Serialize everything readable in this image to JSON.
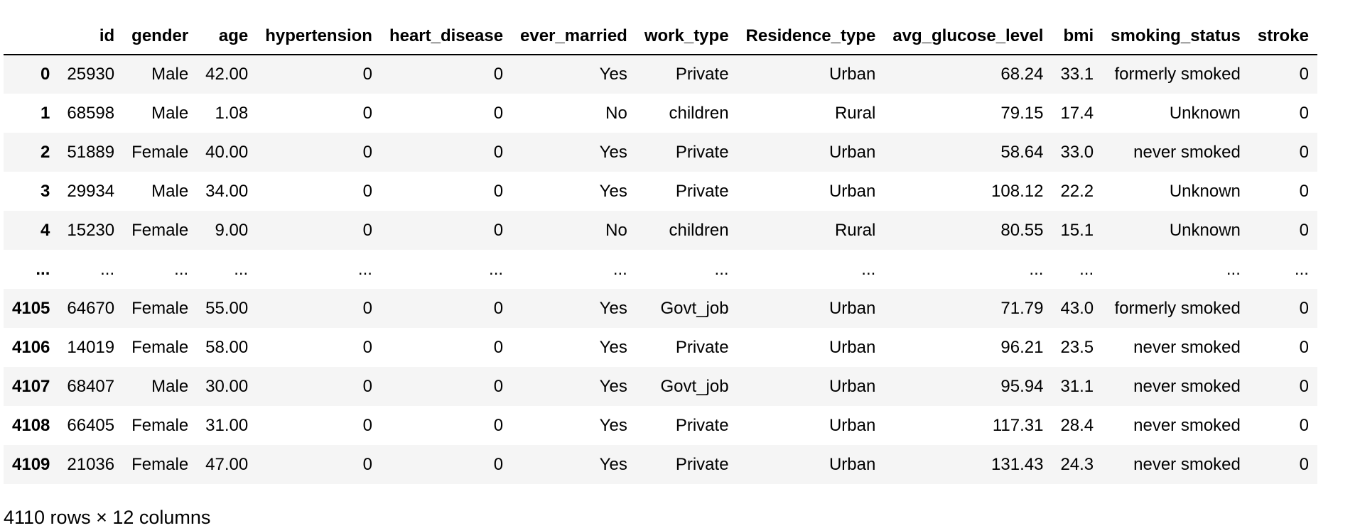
{
  "table": {
    "columns": [
      "",
      "id",
      "gender",
      "age",
      "hypertension",
      "heart_disease",
      "ever_married",
      "work_type",
      "Residence_type",
      "avg_glucose_level",
      "bmi",
      "smoking_status",
      "stroke"
    ],
    "rows": [
      [
        "0",
        "25930",
        "Male",
        "42.00",
        "0",
        "0",
        "Yes",
        "Private",
        "Urban",
        "68.24",
        "33.1",
        "formerly smoked",
        "0"
      ],
      [
        "1",
        "68598",
        "Male",
        "1.08",
        "0",
        "0",
        "No",
        "children",
        "Rural",
        "79.15",
        "17.4",
        "Unknown",
        "0"
      ],
      [
        "2",
        "51889",
        "Female",
        "40.00",
        "0",
        "0",
        "Yes",
        "Private",
        "Urban",
        "58.64",
        "33.0",
        "never smoked",
        "0"
      ],
      [
        "3",
        "29934",
        "Male",
        "34.00",
        "0",
        "0",
        "Yes",
        "Private",
        "Urban",
        "108.12",
        "22.2",
        "Unknown",
        "0"
      ],
      [
        "4",
        "15230",
        "Female",
        "9.00",
        "0",
        "0",
        "No",
        "children",
        "Rural",
        "80.55",
        "15.1",
        "Unknown",
        "0"
      ],
      [
        "...",
        "...",
        "...",
        "...",
        "...",
        "...",
        "...",
        "...",
        "...",
        "...",
        "...",
        "...",
        "..."
      ],
      [
        "4105",
        "64670",
        "Female",
        "55.00",
        "0",
        "0",
        "Yes",
        "Govt_job",
        "Urban",
        "71.79",
        "43.0",
        "formerly smoked",
        "0"
      ],
      [
        "4106",
        "14019",
        "Female",
        "58.00",
        "0",
        "0",
        "Yes",
        "Private",
        "Urban",
        "96.21",
        "23.5",
        "never smoked",
        "0"
      ],
      [
        "4107",
        "68407",
        "Male",
        "30.00",
        "0",
        "0",
        "Yes",
        "Govt_job",
        "Urban",
        "95.94",
        "31.1",
        "never smoked",
        "0"
      ],
      [
        "4108",
        "66405",
        "Female",
        "31.00",
        "0",
        "0",
        "Yes",
        "Private",
        "Urban",
        "117.31",
        "28.4",
        "never smoked",
        "0"
      ],
      [
        "4109",
        "21036",
        "Female",
        "47.00",
        "0",
        "0",
        "Yes",
        "Private",
        "Urban",
        "131.43",
        "24.3",
        "never smoked",
        "0"
      ]
    ]
  },
  "shape_text": "4110 rows × 12 columns",
  "colors": {
    "stripe": "#f5f5f5",
    "header_rule": "#000000",
    "text": "#000000"
  }
}
